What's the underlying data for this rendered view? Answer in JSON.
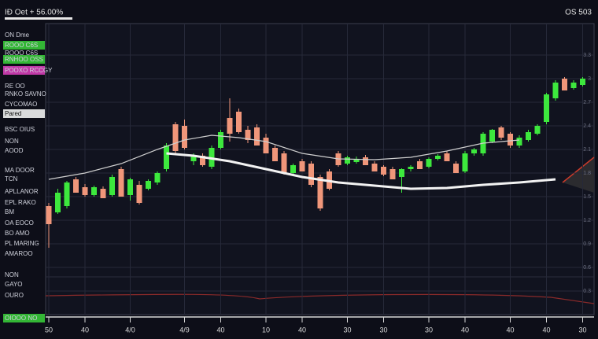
{
  "header": {
    "title": "IÐ Oet + 56.00%",
    "status": "OS 503"
  },
  "sidebar": {
    "items": [
      {
        "label": "ON Dme"
      },
      {
        "label": "ROOO C6S",
        "highlight": "#3bd33b"
      },
      {
        "label": "ROOO C6S"
      },
      {
        "label": "RNHOO OSS",
        "highlight": "#3bd33b"
      },
      {
        "label": "POOXO RCCGY",
        "highlight": "#e040c0"
      },
      {
        "label": "RE OO"
      },
      {
        "label": "RNKO SAVNO"
      },
      {
        "label": "CYCOMAO"
      },
      {
        "label": "Pared",
        "highlight": "#ffffff"
      },
      {
        "label": "BSC OIUS"
      },
      {
        "label": "NON"
      },
      {
        "label": "AOOD"
      },
      {
        "label": "MA DOOR"
      },
      {
        "label": "TCN"
      },
      {
        "label": "APLLANOR"
      },
      {
        "label": "EPL RAKO"
      },
      {
        "label": "BM"
      },
      {
        "label": "OA EOCO"
      },
      {
        "label": "BO AMO"
      },
      {
        "label": "PL MARING"
      },
      {
        "label": "AMAROO"
      },
      {
        "label": "NON"
      },
      {
        "label": "GAYO"
      },
      {
        "label": "OURO"
      },
      {
        "label": "OIOOO NO",
        "highlight": "#3bd33b"
      }
    ]
  },
  "chart_data": {
    "type": "candlestick",
    "up_color": "#3de83d",
    "down_color": "#f0967a",
    "grid": true,
    "ylim": [
      0,
      3.7
    ],
    "yticks": [
      0.3,
      0.6,
      0.9,
      1.2,
      1.5,
      1.8,
      2.1,
      2.4,
      2.7,
      3,
      3.3
    ],
    "categories": [
      "50",
      null,
      null,
      null,
      "40",
      null,
      null,
      null,
      null,
      "4/0",
      null,
      null,
      null,
      null,
      null,
      "4/9",
      null,
      null,
      null,
      "40",
      null,
      null,
      null,
      null,
      "10",
      null,
      null,
      null,
      "40",
      null,
      null,
      null,
      null,
      "30",
      null,
      null,
      null,
      "30",
      null,
      null,
      null,
      null,
      "30",
      null,
      null,
      null,
      "40",
      null,
      null,
      null,
      null,
      "40",
      null,
      null,
      null,
      "40",
      null,
      null,
      null,
      "30"
    ],
    "open": [
      1.38,
      1.3,
      1.38,
      1.72,
      1.62,
      1.52,
      1.6,
      1.52,
      1.85,
      1.52,
      1.65,
      1.6,
      1.68,
      1.85,
      2.42,
      2.4,
      1.95,
      2.02,
      1.88,
      2.12,
      2.5,
      2.58,
      2.35,
      2.38,
      2.25,
      2.12,
      2.05,
      1.8,
      1.95,
      1.92,
      1.75,
      1.82,
      2.05,
      1.92,
      1.94,
      2.0,
      1.92,
      1.88,
      1.85,
      1.75,
      1.85,
      1.95,
      1.88,
      1.98,
      2.05,
      1.92,
      1.82,
      2.05,
      2.05,
      2.2,
      2.38,
      2.3,
      2.15,
      2.22,
      2.3,
      2.45,
      2.75,
      3.0,
      2.88,
      2.92
    ],
    "high": [
      1.42,
      1.6,
      1.7,
      1.75,
      1.66,
      1.64,
      1.63,
      1.78,
      1.88,
      1.74,
      1.7,
      1.72,
      1.82,
      2.18,
      2.45,
      2.48,
      2.05,
      2.05,
      2.15,
      2.35,
      2.75,
      2.62,
      2.4,
      2.42,
      2.3,
      2.15,
      2.08,
      1.92,
      1.98,
      1.95,
      1.78,
      1.85,
      2.08,
      2.02,
      2.01,
      2.03,
      1.95,
      1.9,
      1.88,
      1.86,
      1.9,
      1.98,
      2.0,
      2.04,
      2.08,
      1.95,
      2.08,
      2.12,
      2.32,
      2.36,
      2.4,
      2.32,
      2.28,
      2.35,
      2.42,
      2.82,
      2.98,
      3.02,
      2.98,
      3.02
    ],
    "low": [
      0.85,
      1.28,
      1.35,
      1.55,
      1.5,
      1.5,
      1.48,
      1.5,
      1.5,
      1.45,
      1.4,
      1.58,
      1.65,
      1.82,
      2.05,
      2.1,
      1.9,
      1.88,
      1.85,
      2.1,
      2.2,
      2.3,
      2.18,
      2.15,
      2.05,
      1.95,
      1.78,
      1.78,
      1.82,
      1.62,
      1.32,
      1.58,
      1.88,
      1.9,
      1.92,
      1.9,
      1.82,
      1.76,
      1.72,
      1.55,
      1.82,
      1.85,
      1.86,
      1.96,
      1.95,
      1.8,
      1.8,
      2.02,
      2.02,
      2.18,
      2.22,
      2.12,
      2.12,
      2.2,
      2.28,
      2.42,
      2.72,
      2.85,
      2.86,
      2.9
    ],
    "close": [
      1.15,
      1.55,
      1.68,
      1.55,
      1.52,
      1.62,
      1.48,
      1.75,
      1.5,
      1.72,
      1.42,
      1.7,
      1.8,
      2.15,
      2.08,
      2.12,
      2.03,
      1.9,
      2.12,
      2.32,
      2.3,
      2.32,
      2.22,
      2.15,
      2.05,
      1.95,
      1.8,
      1.9,
      1.82,
      1.65,
      1.35,
      1.6,
      1.9,
      2.0,
      1.98,
      1.9,
      1.82,
      1.78,
      1.72,
      1.85,
      1.88,
      1.85,
      1.98,
      2.02,
      1.95,
      1.8,
      2.05,
      2.1,
      2.3,
      2.35,
      2.25,
      2.15,
      2.25,
      2.32,
      2.4,
      2.8,
      2.95,
      2.85,
      2.95,
      3.0
    ],
    "lines": [
      {
        "color": "#cfcfcf",
        "width": 1.2,
        "x": [
          0,
          4,
          8,
          12,
          15,
          18,
          21,
          24,
          28,
          32,
          36,
          40,
          44,
          48,
          50,
          52
        ],
        "values": [
          1.72,
          1.8,
          1.92,
          2.1,
          2.22,
          2.28,
          2.25,
          2.2,
          2.05,
          1.98,
          1.97,
          2.0,
          2.08,
          2.18,
          2.2,
          2.22
        ]
      },
      {
        "color": "#f2f2f2",
        "width": 3,
        "x": [
          13,
          16,
          20,
          24,
          28,
          32,
          36,
          40,
          44,
          48,
          52,
          56
        ],
        "values": [
          2.05,
          2.02,
          1.95,
          1.85,
          1.75,
          1.68,
          1.64,
          1.6,
          1.61,
          1.65,
          1.68,
          1.72
        ]
      }
    ]
  }
}
